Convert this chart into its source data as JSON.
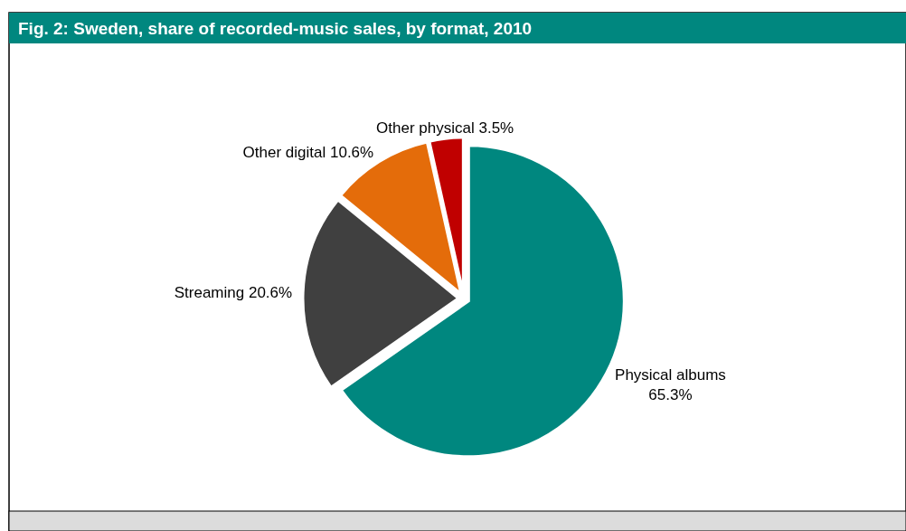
{
  "chart_data": {
    "type": "pie",
    "title": "Fig. 2: Sweden, share of recorded-music sales, by format, 2010",
    "categories": [
      "Physical albums",
      "Streaming",
      "Other digital",
      "Other physical"
    ],
    "values": [
      65.3,
      20.6,
      10.6,
      3.5
    ],
    "value_labels": [
      "65.3%",
      "20.6%",
      "10.6%",
      "3.5%"
    ],
    "colors": [
      "#00877f",
      "#404040",
      "#e46c0a",
      "#c00000"
    ],
    "legend": false
  }
}
